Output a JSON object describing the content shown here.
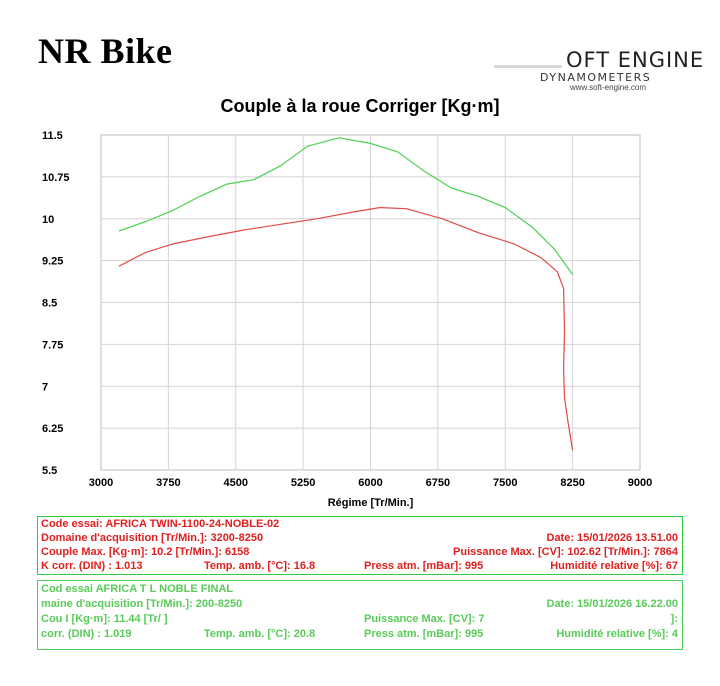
{
  "header": {
    "brand": "NR Bike",
    "logo": {
      "name": "OFT ENGINE",
      "subtitle": "DYNAMOMETERS",
      "url": "www.soft-engine.com"
    }
  },
  "chart_data": {
    "type": "line",
    "title": "Couple à la roue Corriger [Kg·m]",
    "xlabel": "Régime [Tr/Min.]",
    "ylabel": "",
    "xlim": [
      3000,
      9000
    ],
    "ylim": [
      5.5,
      11.5
    ],
    "x_ticks": [
      "3000",
      "3750",
      "4500",
      "5250",
      "6000",
      "6750",
      "7500",
      "8250",
      "9000"
    ],
    "y_ticks": [
      "11.5",
      "10.75",
      "10",
      "9.25",
      "8.5",
      "7.75",
      "7",
      "6.25",
      "5.5"
    ],
    "grid": true,
    "legend": "none",
    "series": [
      {
        "color": "#e24a4a",
        "x": [
          3200,
          3500,
          3800,
          4200,
          4600,
          5000,
          5400,
          5800,
          6100,
          6400,
          6800,
          7200,
          7600,
          7900,
          8080,
          8150,
          8160,
          8150,
          8160,
          8200,
          8250
        ],
        "y": [
          9.15,
          9.4,
          9.55,
          9.68,
          9.8,
          9.9,
          10.0,
          10.12,
          10.2,
          10.18,
          10.0,
          9.75,
          9.55,
          9.3,
          9.05,
          8.75,
          8.0,
          7.3,
          6.8,
          6.35,
          5.85
        ]
      },
      {
        "color": "#4cd04c",
        "x": [
          3200,
          3500,
          3800,
          4100,
          4400,
          4700,
          5000,
          5300,
          5650,
          6000,
          6300,
          6600,
          6900,
          7200,
          7500,
          7800,
          8050,
          8250
        ],
        "y": [
          9.78,
          9.95,
          10.15,
          10.4,
          10.62,
          10.7,
          10.95,
          11.3,
          11.45,
          11.35,
          11.2,
          10.85,
          10.55,
          10.4,
          10.2,
          9.85,
          9.45,
          9.0
        ]
      }
    ]
  },
  "info_boxes": [
    {
      "lines": [
        {
          "left": "Code essai: AFRICA TWIN-1100-24-NOBLE-02"
        },
        {
          "left": "Domaine d'acquisition [Tr/Min.]: 3200-8250",
          "right": "Date: 15/01/2026  13.51.00"
        },
        {
          "left": "Couple Max. [Kg·m]: 10.2   [Tr/Min.]: 6158",
          "right": "Puissance Max. [CV]: 102.62   [Tr/Min.]: 7864"
        },
        {
          "left": "K corr. (DIN) : 1.013",
          "mid1": "Temp. amb. [°C]: 16.8",
          "mid2": "Press atm. [mBar]: 995",
          "right": "Humidité relative [%]: 67"
        }
      ]
    },
    {
      "lines": [
        {
          "left": "Cod  essai  AFRICA  T         L  NOBLE FINAL"
        },
        {
          "left": "   maine  d'acquisition [Tr/Min.]:  200-8250",
          "right": "Date: 15/01/2026  16.22.00"
        },
        {
          "left": "Cou  I        [Kg·m]: 11.44  [Tr/      ]",
          "mid2": "Puissance Max. [CV]:   7",
          "right": "]:"
        },
        {
          "left": "  corr. (DIN) : 1.019",
          "mid1": "Temp. amb. [°C]: 20.8",
          "mid2": "Press atm. [mBar]: 995",
          "right": "Humidité relative [%]: 4"
        }
      ]
    }
  ]
}
